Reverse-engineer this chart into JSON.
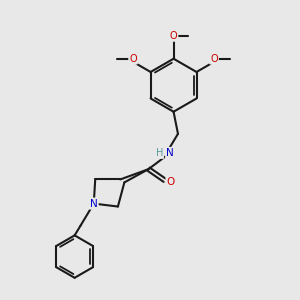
{
  "background_color": "#e8e8e8",
  "bond_color": "#1a1a1a",
  "N_color": "#0000cc",
  "O_color": "#cc0000",
  "H_color": "#5a9a9a",
  "figsize": [
    3.0,
    3.0
  ],
  "dpi": 100,
  "xlim": [
    0,
    10
  ],
  "ylim": [
    0,
    10
  ]
}
